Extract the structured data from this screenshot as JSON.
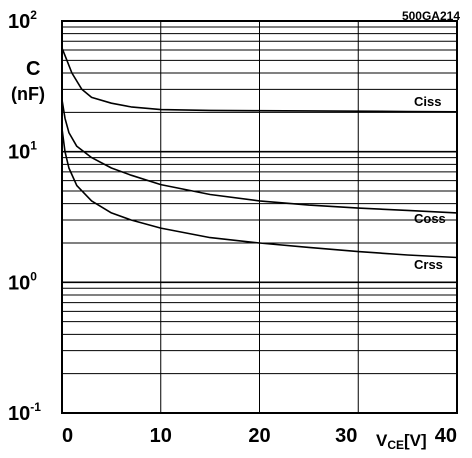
{
  "figure_code": "500GA214",
  "chart_data": {
    "type": "line",
    "title": "",
    "x_axis": {
      "label_main": "V",
      "label_sub": "CE",
      "label_unit": "[V]",
      "range": [
        0,
        40
      ],
      "ticks": [
        0,
        10,
        20,
        30,
        40
      ],
      "tick_labels": [
        "0",
        "10",
        "20",
        "30",
        "40"
      ]
    },
    "y_axis": {
      "label": "C",
      "unit": "(nF)",
      "scale": "log",
      "range": [
        0.1,
        100
      ],
      "decades": [
        {
          "mantissa": "10",
          "exponent": "2",
          "value": 100
        },
        {
          "mantissa": "10",
          "exponent": "1",
          "value": 10
        },
        {
          "mantissa": "10",
          "exponent": "0",
          "value": 1
        },
        {
          "mantissa": "10",
          "exponent": "-1",
          "value": 0.1
        }
      ]
    },
    "grid": true,
    "series": [
      {
        "name": "Ciss",
        "x": [
          0,
          0.5,
          1,
          2,
          3,
          5,
          7,
          10,
          15,
          20,
          25,
          30,
          35,
          40
        ],
        "y": [
          62,
          50,
          40,
          30,
          26,
          23.5,
          22,
          21,
          20.7,
          20.6,
          20.5,
          20.4,
          20.3,
          20.2
        ]
      },
      {
        "name": "Coss",
        "x": [
          0,
          0.3,
          0.7,
          1.5,
          3,
          5,
          7,
          10,
          15,
          20,
          25,
          30,
          35,
          40
        ],
        "y": [
          25,
          18,
          14,
          11,
          9,
          7.5,
          6.6,
          5.6,
          4.7,
          4.2,
          3.9,
          3.7,
          3.55,
          3.4
        ]
      },
      {
        "name": "Crss",
        "x": [
          0,
          0.3,
          0.7,
          1.5,
          3,
          5,
          7,
          10,
          15,
          20,
          25,
          30,
          35,
          40
        ],
        "y": [
          15,
          10,
          7.5,
          5.5,
          4.2,
          3.4,
          3.0,
          2.6,
          2.2,
          2.0,
          1.85,
          1.72,
          1.62,
          1.55
        ]
      }
    ]
  }
}
